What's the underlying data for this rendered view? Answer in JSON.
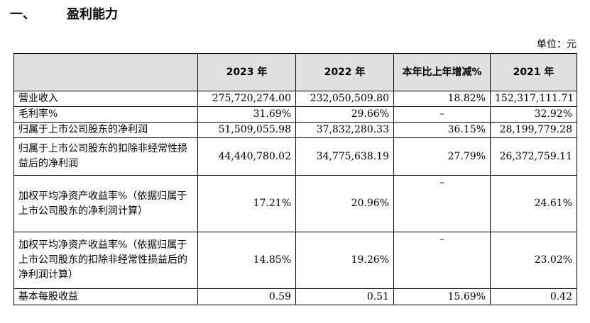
{
  "section": {
    "number": "一、",
    "title": "盈利能力"
  },
  "unit_label": "单位：元",
  "table": {
    "headers": [
      "",
      "2023 年",
      "2022 年",
      "本年比上年增减%",
      "2021 年"
    ],
    "rows": [
      {
        "label": "营业收入",
        "v2023": "275,720,274.00",
        "v2022": "232,050,509.80",
        "change": "18.82%",
        "v2021": "152,317,111.71"
      },
      {
        "label": "毛利率%",
        "v2023": "31.69%",
        "v2022": "29.66%",
        "change": "–",
        "v2021": "32.92%"
      },
      {
        "label": "归属于上市公司股东的净利润",
        "v2023": "51,509,055.98",
        "v2022": "37,832,280.33",
        "change": "36.15%",
        "v2021": "28,199,779.28"
      },
      {
        "label": "归属于上市公司股东的扣除非经常性损益后的净利润",
        "v2023": "44,440,780.02",
        "v2022": "34,775,638.19",
        "change": "27.79%",
        "v2021": "26,372,759.11"
      },
      {
        "label": "加权平均净资产收益率%（依据归属于上市公司股东的净利润计算）",
        "v2023": "17.21%",
        "v2022": "20.96%",
        "change": "–",
        "v2021": "24.61%"
      },
      {
        "label": "加权平均净资产收益率%（依据归属于上市公司股东的扣除非经常性损益后的净利润计算）",
        "v2023": "14.85%",
        "v2022": "19.26%",
        "change": "–",
        "v2021": "23.02%"
      },
      {
        "label": "基本每股收益",
        "v2023": "0.59",
        "v2022": "0.51",
        "change": "15.69%",
        "v2021": "0.42"
      }
    ]
  }
}
